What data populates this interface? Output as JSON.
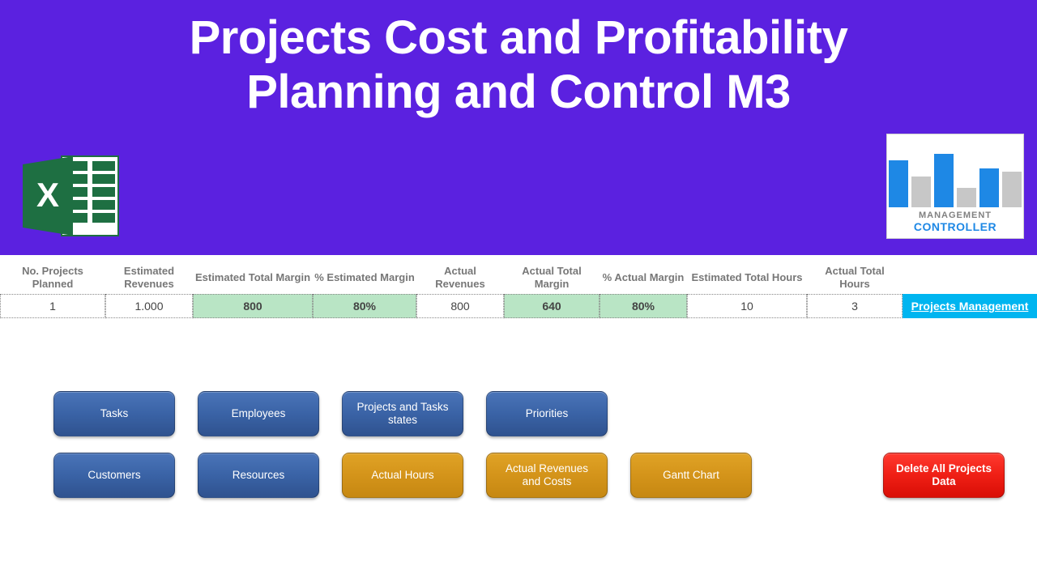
{
  "header": {
    "title_line1": "Projects Cost and Profitability",
    "title_line2": "Planning and Control M3",
    "bg_color": "#5b21e0",
    "title_color": "#ffffff"
  },
  "mgmt_logo": {
    "text1": "MANAGEMENT",
    "text2": "CONTROLLER",
    "bars": [
      {
        "h": 58,
        "color": "#1e88e5"
      },
      {
        "h": 38,
        "color": "#c7c7c7"
      },
      {
        "h": 66,
        "color": "#1e88e5"
      },
      {
        "h": 24,
        "color": "#c7c7c7"
      },
      {
        "h": 48,
        "color": "#1e88e5"
      },
      {
        "h": 44,
        "color": "#c7c7c7"
      }
    ]
  },
  "summary": {
    "columns": [
      {
        "key": "projects",
        "label": "No. Projects Planned",
        "value": "1",
        "width": 130,
        "green": false
      },
      {
        "key": "est_rev",
        "label": "Estimated Revenues",
        "value": "1.000",
        "width": 108,
        "green": false
      },
      {
        "key": "est_margin",
        "label": "Estimated Total Margin",
        "value": "800",
        "width": 148,
        "green": true
      },
      {
        "key": "est_margin_pct",
        "label": "% Estimated Margin",
        "value": "80%",
        "width": 128,
        "green": true
      },
      {
        "key": "act_rev",
        "label": "Actual Revenues",
        "value": "800",
        "width": 108,
        "green": false
      },
      {
        "key": "act_margin",
        "label": "Actual Total Margin",
        "value": "640",
        "width": 118,
        "green": true
      },
      {
        "key": "act_margin_pct",
        "label": "% Actual Margin",
        "value": "80%",
        "width": 108,
        "green": true
      },
      {
        "key": "est_hours",
        "label": "Estimated Total Hours",
        "value": "10",
        "width": 148,
        "green": false
      },
      {
        "key": "act_hours",
        "label": "Actual Total Hours",
        "value": "3",
        "width": 118,
        "green": false
      }
    ],
    "link_label": "Projects Management",
    "link_width": 166,
    "green_bg": "#b9e5c5",
    "link_bg": "#00b5f0"
  },
  "buttons": {
    "row1": [
      {
        "key": "tasks",
        "label": "Tasks",
        "style": "blue"
      },
      {
        "key": "employees",
        "label": "Employees",
        "style": "blue"
      },
      {
        "key": "states",
        "label": "Projects and Tasks states",
        "style": "blue"
      },
      {
        "key": "priorities",
        "label": "Priorities",
        "style": "blue"
      }
    ],
    "row2": [
      {
        "key": "customers",
        "label": "Customers",
        "style": "blue"
      },
      {
        "key": "resources",
        "label": "Resources",
        "style": "blue"
      },
      {
        "key": "actual_hours",
        "label": "Actual Hours",
        "style": "gold"
      },
      {
        "key": "actual_rev_costs",
        "label": "Actual Revenues and Costs",
        "style": "gold"
      },
      {
        "key": "gantt",
        "label": "Gantt Chart",
        "style": "gold"
      }
    ],
    "delete_label": "Delete All Projects Data"
  }
}
